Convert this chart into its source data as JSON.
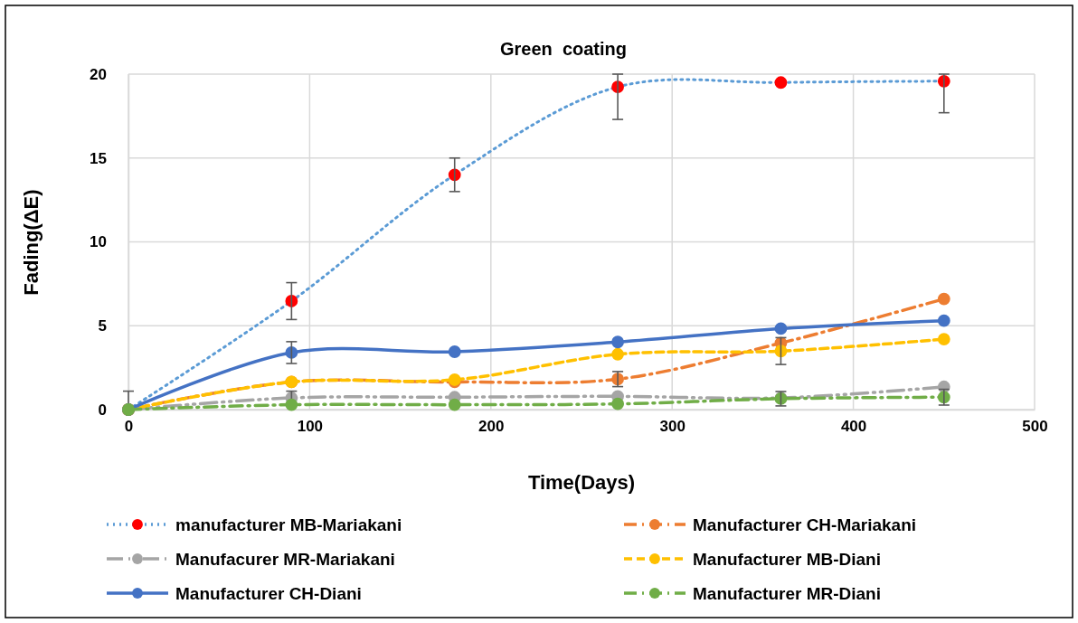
{
  "chart_data": {
    "type": "line",
    "title": "Green  coating",
    "xlabel": "Time(Days)",
    "ylabel": "Fading(ΔE)",
    "x": [
      0,
      90,
      180,
      270,
      360,
      450
    ],
    "xlim": [
      0,
      500
    ],
    "xticks": [
      0,
      100,
      200,
      300,
      400,
      500
    ],
    "ylim": [
      0,
      20
    ],
    "yticks": [
      0,
      5,
      10,
      15,
      20
    ],
    "grid": true,
    "legend": "bottom",
    "marker": "circle",
    "series": [
      {
        "name": "manufacturer MB-Mariakani",
        "color": "#5b9bd5",
        "colors": [
          "#ff0000",
          "#ff0000",
          "#ff0000",
          "#ff0000",
          "#ff0000",
          "#ff0000"
        ],
        "line_style": "dotted",
        "values": [
          0,
          6.47,
          14.0,
          19.24,
          19.5,
          19.58
        ],
        "errors": [
          null,
          1.1,
          1.0,
          [
            17.3,
            20
          ],
          null,
          [
            17.7,
            20
          ]
        ]
      },
      {
        "name": "Manufacturer CH-Mariakani",
        "color": "#ed7d31",
        "line_style": "dashdot",
        "values": [
          0,
          1.65,
          1.65,
          1.82,
          3.97,
          6.6
        ],
        "errors": [
          null,
          null,
          null,
          0.45,
          null,
          null
        ]
      },
      {
        "name": "Manufacurer MR-Mariakani",
        "color": "#a5a5a5",
        "line_style": "dashdotdot",
        "values": [
          0,
          0.7,
          0.74,
          0.79,
          0.7,
          1.36
        ],
        "errors": [
          [
            0,
            1.1
          ],
          0.4,
          null,
          null,
          null,
          null
        ]
      },
      {
        "name": "Manufacturer MB-Diani",
        "color": "#ffc000",
        "line_style": "dashed",
        "values": [
          0,
          1.65,
          1.78,
          3.3,
          3.49,
          4.2
        ],
        "errors": [
          null,
          null,
          null,
          null,
          0.8,
          null
        ]
      },
      {
        "name": "Manufacturer CH-Diani",
        "color": "#4472c4",
        "line_style": "solid",
        "values": [
          0,
          3.4,
          3.45,
          4.03,
          4.83,
          5.3
        ],
        "errors": [
          null,
          0.65,
          null,
          null,
          null,
          null
        ]
      },
      {
        "name": "Manufacturer MR-Diani",
        "color": "#70ad47",
        "line_style": "dashdot",
        "values": [
          0,
          0.29,
          0.29,
          0.34,
          0.65,
          0.74
        ],
        "errors": [
          null,
          null,
          null,
          null,
          0.43,
          0.47
        ]
      }
    ]
  }
}
